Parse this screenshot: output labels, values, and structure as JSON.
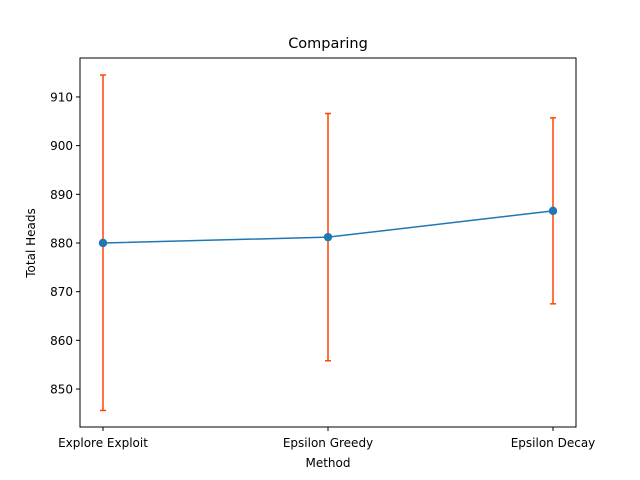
{
  "chart_data": {
    "type": "line",
    "title": "Comparing",
    "xlabel": "Method",
    "ylabel": "Total Heads",
    "categories": [
      "Explore Exploit",
      "Epsilon Greedy",
      "Epsilon Decay"
    ],
    "series": [
      {
        "name": "Total Heads",
        "values": [
          880.0,
          881.2,
          886.6
        ],
        "error_low": [
          845.6,
          855.8,
          867.5
        ],
        "error_high": [
          914.5,
          906.6,
          905.7
        ],
        "line_color": "#1f77b4",
        "error_color": "#ff4500",
        "marker": "circle"
      }
    ],
    "ylim": [
      842.2,
      918.0
    ],
    "yticks": [
      850,
      860,
      870,
      880,
      890,
      900,
      910
    ],
    "grid": false,
    "legend": "none"
  }
}
